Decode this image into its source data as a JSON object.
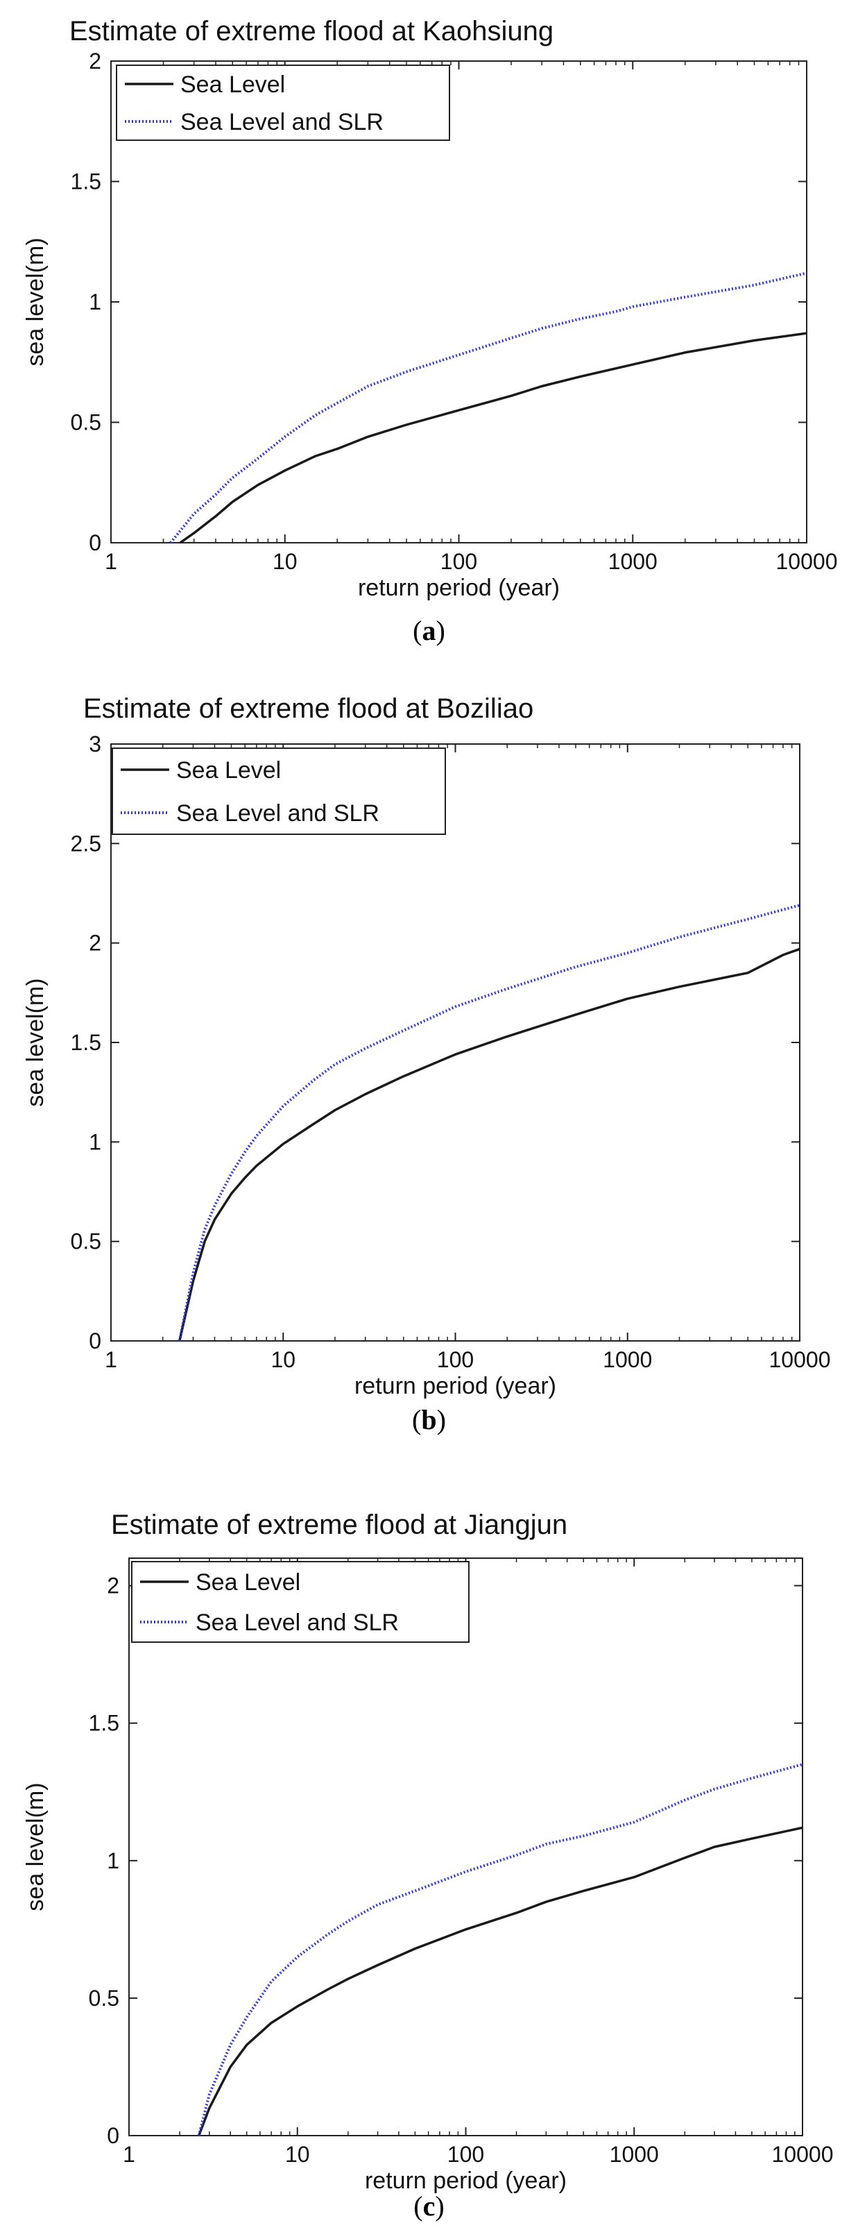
{
  "chart_data": [
    {
      "type": "line",
      "panel": "a",
      "title": "Estimate of extreme flood at Kaohsiung",
      "xlabel": "return period (year)",
      "ylabel": "sea level(m)",
      "xscale": "log",
      "xlim": [
        1,
        10000
      ],
      "ylim": [
        0,
        2
      ],
      "xticks": [
        1,
        10,
        100,
        1000,
        10000
      ],
      "xtick_labels": [
        "1",
        "10",
        "100",
        "1000",
        "10000"
      ],
      "yticks": [
        0,
        0.5,
        1,
        1.5,
        2
      ],
      "ytick_labels": [
        "0",
        "0.5",
        "1",
        "1.5",
        "2"
      ],
      "grid": false,
      "legend": "top-left",
      "series": [
        {
          "name": "Sea Level",
          "color": "#1a1a1a",
          "style": "solid",
          "x": [
            2.5,
            3,
            4,
            5,
            7,
            10,
            15,
            20,
            30,
            50,
            100,
            200,
            300,
            500,
            1000,
            2000,
            5000,
            10000
          ],
          "y": [
            0,
            0.04,
            0.11,
            0.17,
            0.24,
            0.3,
            0.36,
            0.39,
            0.44,
            0.49,
            0.55,
            0.61,
            0.65,
            0.69,
            0.74,
            0.79,
            0.84,
            0.87
          ]
        },
        {
          "name": "Sea Level and SLR",
          "color": "#2a35e8",
          "style": "dotted",
          "x": [
            2.2,
            3,
            4,
            5,
            7,
            10,
            15,
            20,
            30,
            50,
            100,
            200,
            300,
            500,
            800,
            1000,
            2000,
            5000,
            10000
          ],
          "y": [
            0,
            0.12,
            0.2,
            0.27,
            0.35,
            0.44,
            0.53,
            0.58,
            0.65,
            0.71,
            0.78,
            0.85,
            0.89,
            0.93,
            0.96,
            0.98,
            1.02,
            1.07,
            1.12
          ]
        }
      ]
    },
    {
      "type": "line",
      "panel": "b",
      "title": "Estimate of extreme flood at Boziliao",
      "xlabel": "return period (year)",
      "ylabel": "sea level(m)",
      "xscale": "log",
      "xlim": [
        1,
        10000
      ],
      "ylim": [
        0,
        3
      ],
      "xticks": [
        1,
        10,
        100,
        1000,
        10000
      ],
      "xtick_labels": [
        "1",
        "10",
        "100",
        "1000",
        "10000"
      ],
      "yticks": [
        0,
        0.5,
        1,
        1.5,
        2,
        2.5,
        3
      ],
      "ytick_labels": [
        "0",
        "0.5",
        "1",
        "1.5",
        "2",
        "2.5",
        "3"
      ],
      "grid": false,
      "legend": "top-left",
      "series": [
        {
          "name": "Sea Level",
          "color": "#1a1a1a",
          "style": "solid",
          "x": [
            2.5,
            3,
            3.5,
            4,
            5,
            6,
            7,
            10,
            15,
            20,
            30,
            50,
            100,
            200,
            500,
            1000,
            2000,
            5000,
            8000,
            10000
          ],
          "y": [
            0,
            0.3,
            0.5,
            0.61,
            0.74,
            0.82,
            0.88,
            0.99,
            1.09,
            1.16,
            1.24,
            1.33,
            1.44,
            1.53,
            1.64,
            1.72,
            1.78,
            1.85,
            1.94,
            1.97
          ]
        },
        {
          "name": "Sea Level and SLR",
          "color": "#2a35e8",
          "style": "dotted",
          "x": [
            2.5,
            3,
            3.5,
            4,
            5,
            6,
            7,
            10,
            15,
            20,
            30,
            50,
            100,
            200,
            500,
            1000,
            2000,
            5000,
            10000
          ],
          "y": [
            0,
            0.34,
            0.56,
            0.68,
            0.84,
            0.95,
            1.03,
            1.18,
            1.31,
            1.39,
            1.47,
            1.56,
            1.68,
            1.77,
            1.88,
            1.95,
            2.03,
            2.12,
            2.19
          ]
        }
      ]
    },
    {
      "type": "line",
      "panel": "c",
      "title": "Estimate of extreme flood at Jiangjun",
      "xlabel": "return period (year)",
      "ylabel": "sea level(m)",
      "xscale": "log",
      "xlim": [
        1,
        10000
      ],
      "ylim": [
        0,
        2.1
      ],
      "xticks": [
        1,
        10,
        100,
        1000,
        10000
      ],
      "xtick_labels": [
        "1",
        "10",
        "100",
        "1000",
        "10000"
      ],
      "yticks": [
        0,
        0.5,
        1,
        1.5,
        2
      ],
      "ytick_labels": [
        "0",
        "0.5",
        "1",
        "1.5",
        "2"
      ],
      "grid": false,
      "legend": "top-left",
      "series": [
        {
          "name": "Sea Level",
          "color": "#1a1a1a",
          "style": "solid",
          "x": [
            2.6,
            3,
            4,
            5,
            7,
            10,
            15,
            20,
            30,
            50,
            100,
            200,
            300,
            500,
            1000,
            2000,
            3000,
            5000,
            10000
          ],
          "y": [
            0,
            0.1,
            0.25,
            0.33,
            0.41,
            0.47,
            0.53,
            0.57,
            0.62,
            0.68,
            0.75,
            0.81,
            0.85,
            0.89,
            0.94,
            1.01,
            1.05,
            1.08,
            1.12
          ]
        },
        {
          "name": "Sea Level and SLR",
          "color": "#2a35e8",
          "style": "dotted",
          "x": [
            2.6,
            3,
            4,
            5,
            7,
            10,
            15,
            20,
            30,
            50,
            100,
            200,
            300,
            500,
            1000,
            2000,
            3000,
            5000,
            10000
          ],
          "y": [
            0,
            0.15,
            0.33,
            0.43,
            0.56,
            0.65,
            0.73,
            0.78,
            0.84,
            0.89,
            0.96,
            1.02,
            1.06,
            1.09,
            1.14,
            1.22,
            1.26,
            1.3,
            1.35
          ]
        }
      ]
    }
  ],
  "panel_labels": [
    "a",
    "b",
    "c"
  ]
}
